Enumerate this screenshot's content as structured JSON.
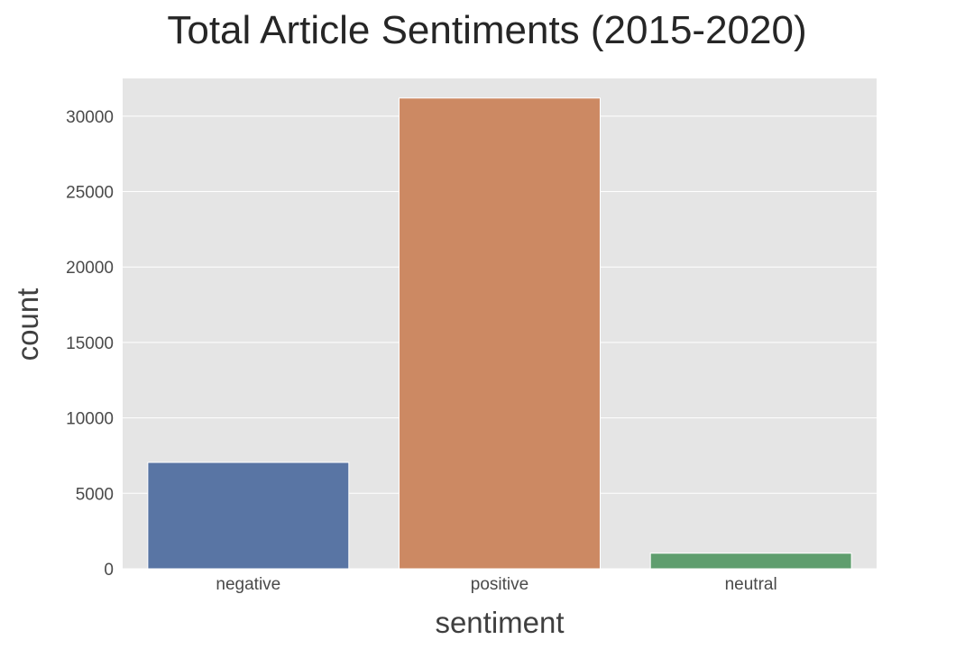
{
  "chart_data": {
    "type": "bar",
    "title": "Total Article Sentiments (2015-2020)",
    "xlabel": "sentiment",
    "ylabel": "count",
    "categories": [
      "negative",
      "positive",
      "neutral"
    ],
    "values": [
      7050,
      31200,
      1030
    ],
    "colors": [
      "#5975a4",
      "#cc8963",
      "#5f9e6e"
    ],
    "ylim": [
      0,
      32500
    ],
    "yticks": [
      0,
      5000,
      10000,
      15000,
      20000,
      25000,
      30000
    ],
    "ytick_labels": [
      "0",
      "5000",
      "10000",
      "15000",
      "20000",
      "25000",
      "30000"
    ],
    "grid": true,
    "background": "#e5e5e5",
    "grid_color": "#ffffff"
  }
}
